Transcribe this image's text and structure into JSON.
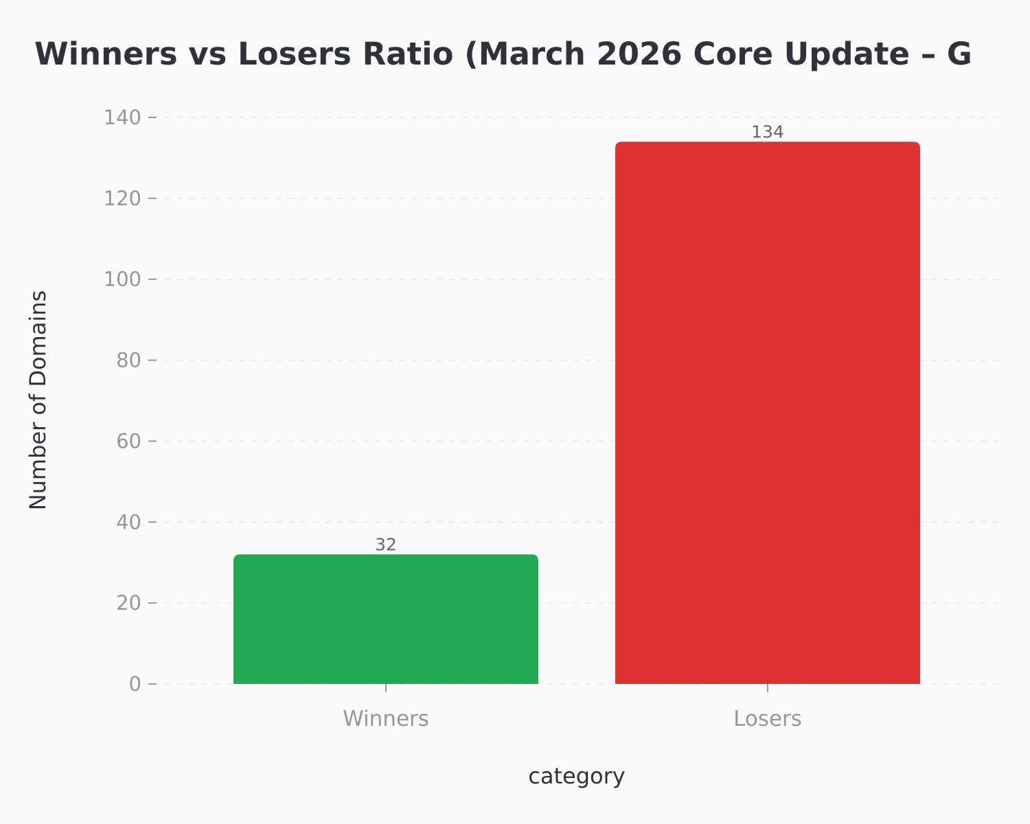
{
  "chart_data": {
    "type": "bar",
    "title": "Winners vs Losers Ratio (March 2026 Core Update – G",
    "xlabel": "category",
    "ylabel": "Number of Domains",
    "categories": [
      "Winners",
      "Losers"
    ],
    "values": [
      32,
      134
    ],
    "data_labels": [
      "32",
      "134"
    ],
    "colors": [
      "#21a853",
      "#dc3232"
    ],
    "ylim": [
      0,
      140
    ],
    "yticks": [
      0,
      20,
      40,
      60,
      80,
      100,
      120,
      140
    ],
    "grid": true
  }
}
